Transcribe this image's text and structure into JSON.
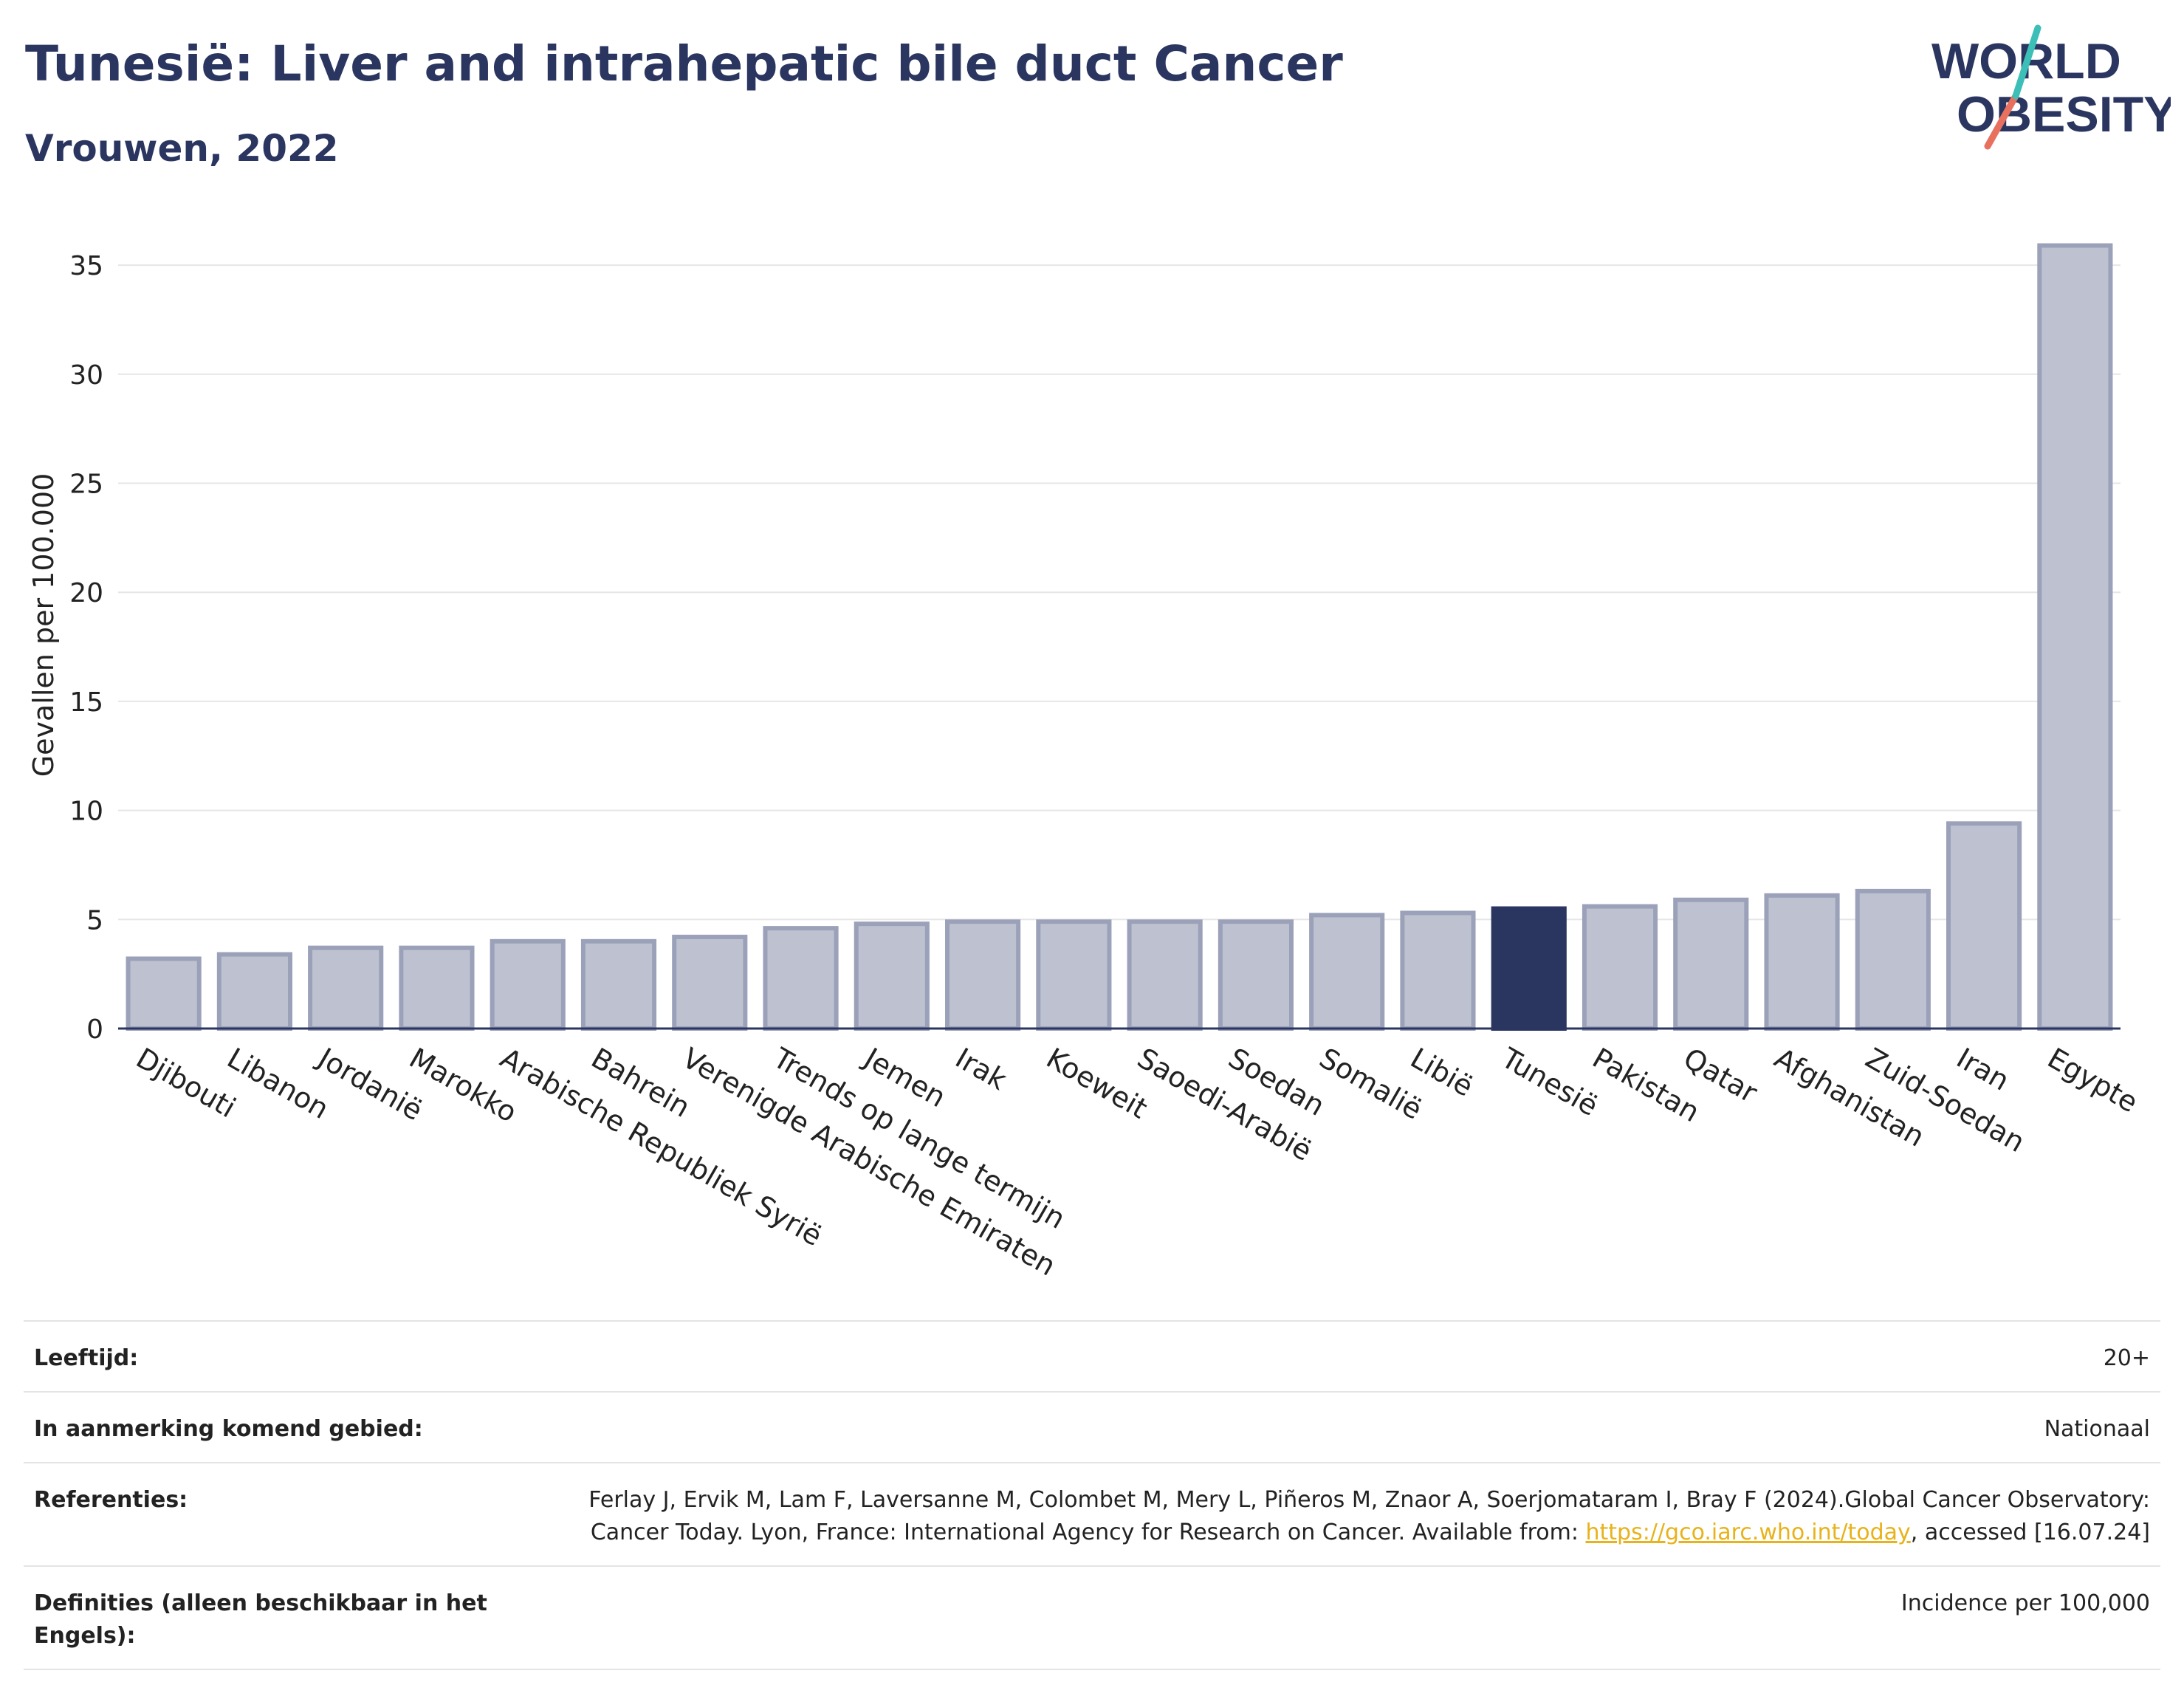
{
  "header": {
    "title": "Tunesië: Liver and intrahepatic bile duct Cancer",
    "subtitle": "Vrouwen, 2022"
  },
  "logo": {
    "line1": "WORLD",
    "line2": "OBESITY"
  },
  "chart_data": {
    "type": "bar",
    "ylabel": "Gevallen per 100.000",
    "ylim": [
      0,
      37
    ],
    "yticks": [
      0,
      5,
      10,
      15,
      20,
      25,
      30,
      35
    ],
    "grid": true,
    "highlight": "Tunesië",
    "categories": [
      "Djibouti",
      "Libanon",
      "Jordanië",
      "Marokko",
      "Arabische Republiek Syrië",
      "Bahrein",
      "Verenigde Arabische Emiraten",
      "Trends op lange termijn",
      "Jemen",
      "Irak",
      "Koeweit",
      "Saoedi-Arabië",
      "Soedan",
      "Somalië",
      "Libië",
      "Tunesië",
      "Pakistan",
      "Qatar",
      "Afghanistan",
      "Zuid-Soedan",
      "Iran",
      "Egypte"
    ],
    "values": [
      3.2,
      3.4,
      3.7,
      3.7,
      4.0,
      4.0,
      4.2,
      4.6,
      4.8,
      4.9,
      4.9,
      4.9,
      4.9,
      5.2,
      5.3,
      5.5,
      5.6,
      5.9,
      6.1,
      6.3,
      9.4,
      35.9
    ],
    "colors": {
      "bar": "#bec2d0",
      "bar_stroke": "#9ba1b9",
      "highlight": "#2a3560",
      "grid": "#e6e6e6",
      "axis": "#2a3560"
    }
  },
  "info": {
    "age_label": "Leeftijd:",
    "age_value": "20+",
    "area_label": "In aanmerking komend gebied:",
    "area_value": "Nationaal",
    "ref_label": "Referenties:",
    "ref_text_1": "Ferlay J, Ervik M, Lam F, Laversanne M, Colombet M, Mery L, Piñeros M, Znaor A, Soerjomataram I, Bray F (2024).Global Cancer Observatory: Cancer Today. Lyon, France: International Agency for Research on Cancer. Available from: ",
    "ref_link": "https://gco.iarc.who.int/today",
    "ref_text_2": ", accessed [16.07.24]",
    "def_label": "Definities (alleen beschikbaar in het Engels):",
    "def_value": "Incidence per 100,000"
  }
}
